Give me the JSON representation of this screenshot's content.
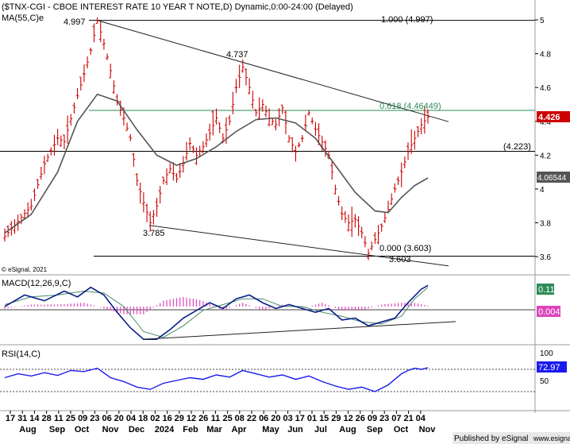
{
  "header": {
    "title": "($TNX-CGI - CBOE INTEREST RATE 10 YEAR T NOTE,D) Dynamic,0:00-24:00 (Delayed)",
    "ma_label": "MA(55,C)e",
    "copyright": "© eSignal, 2021"
  },
  "colors": {
    "price_bar": "#cc0000",
    "ma_line": "#555555",
    "trendline": "#222222",
    "fib_line": "#2e8b57",
    "macd_line": "#0a1e8a",
    "signal_line": "#4a8a6a",
    "histogram": "#dd44bb",
    "rsi_line": "#1a1aee",
    "last_price_bg": "#cc0000",
    "ma_value_bg": "#555555",
    "macd_value_bg": "#2e8b57",
    "hist_value_bg": "#dd44bb",
    "rsi_value_bg": "#1a1aee"
  },
  "panes": {
    "macd_label": "MACD(12,26,9,C)",
    "rsi_label": "RSI(14,C)"
  },
  "price_labels": {
    "last_price": "4.426",
    "ma_value": "4.06544",
    "macd_value": "0.11",
    "histogram_value": "0.004",
    "rsi_value": "72.97"
  },
  "footer": {
    "published_by": "Published by eSignal",
    "website": "www.esignal.com"
  },
  "chart_data": {
    "type": "candlestick",
    "y_axis": {
      "ticks": [
        3.6,
        3.8,
        4,
        4.2,
        4.4,
        4.6,
        4.8,
        5
      ],
      "ylim": [
        3.53,
        5.08
      ]
    },
    "annotations": {
      "swing_high": "4.997",
      "lower_high": "4.737",
      "swing_low": "3.785",
      "recent_low": "3.603",
      "fib_100": "1.000 (4.997)",
      "fib_618": "0.618 (4.46449)",
      "fib_000": "0.000 (3.603)",
      "support_level": "(4.223)",
      "low_label_2": "3.603"
    },
    "levels": {
      "fib_100": 4.997,
      "fib_618": 4.46449,
      "fib_000": 3.603,
      "support": 4.223
    },
    "x_axis": {
      "day_labels": [
        "17",
        "31",
        "14",
        "28",
        "11",
        "25",
        "09",
        "23",
        "06",
        "20",
        "04",
        "18",
        "02",
        "16",
        "29",
        "12",
        "26",
        "11",
        "25",
        "08",
        "22",
        "06",
        "20",
        "03",
        "17",
        "01",
        "15",
        "29",
        "12",
        "26",
        "09",
        "23",
        "07",
        "21",
        "04"
      ],
      "month_labels": [
        "Aug",
        "Sep",
        "Oct",
        "Nov",
        "Dec",
        "2024",
        "Feb",
        "Mar",
        "Apr",
        "May",
        "Jun",
        "Jul",
        "Aug",
        "Sep",
        "Oct",
        "Nov"
      ]
    },
    "price_path": [
      [
        0,
        3.72
      ],
      [
        4,
        3.9
      ],
      [
        6,
        4.15
      ],
      [
        8,
        4.3
      ],
      [
        9,
        4.28
      ],
      [
        11,
        4.55
      ],
      [
        12,
        4.68
      ],
      [
        13,
        4.82
      ],
      [
        14,
        4.997
      ],
      [
        15,
        4.86
      ],
      [
        16,
        4.7
      ],
      [
        17,
        4.52
      ],
      [
        18,
        4.42
      ],
      [
        19,
        4.3
      ],
      [
        20,
        4.05
      ],
      [
        21,
        3.92
      ],
      [
        22,
        3.8
      ],
      [
        23,
        3.9
      ],
      [
        24,
        4.05
      ],
      [
        25,
        4.12
      ],
      [
        26,
        4.06
      ],
      [
        27,
        4.15
      ],
      [
        28,
        4.27
      ],
      [
        29,
        4.2
      ],
      [
        30,
        4.25
      ],
      [
        31,
        4.33
      ],
      [
        32,
        4.42
      ],
      [
        33,
        4.3
      ],
      [
        34,
        4.4
      ],
      [
        35,
        4.6
      ],
      [
        36,
        4.72
      ],
      [
        37,
        4.6
      ],
      [
        38,
        4.45
      ],
      [
        39,
        4.5
      ],
      [
        40,
        4.42
      ],
      [
        41,
        4.38
      ],
      [
        42,
        4.48
      ],
      [
        43,
        4.3
      ],
      [
        44,
        4.22
      ],
      [
        45,
        4.3
      ],
      [
        46,
        4.45
      ],
      [
        47,
        4.35
      ],
      [
        48,
        4.28
      ],
      [
        49,
        4.2
      ],
      [
        50,
        4.0
      ],
      [
        51,
        3.85
      ],
      [
        52,
        3.8
      ],
      [
        53,
        3.82
      ],
      [
        54,
        3.74
      ],
      [
        55,
        3.62
      ],
      [
        56,
        3.7
      ],
      [
        57,
        3.78
      ],
      [
        58,
        3.88
      ],
      [
        59,
        4.0
      ],
      [
        60,
        4.1
      ],
      [
        61,
        4.22
      ],
      [
        62,
        4.3
      ],
      [
        63,
        4.38
      ],
      [
        64,
        4.426
      ]
    ],
    "ma_path": [
      [
        0,
        3.74
      ],
      [
        4,
        3.85
      ],
      [
        8,
        4.1
      ],
      [
        11,
        4.4
      ],
      [
        14,
        4.56
      ],
      [
        17,
        4.52
      ],
      [
        20,
        4.35
      ],
      [
        23,
        4.2
      ],
      [
        26,
        4.14
      ],
      [
        29,
        4.18
      ],
      [
        32,
        4.25
      ],
      [
        35,
        4.34
      ],
      [
        38,
        4.41
      ],
      [
        41,
        4.42
      ],
      [
        44,
        4.39
      ],
      [
        47,
        4.3
      ],
      [
        50,
        4.14
      ],
      [
        53,
        3.98
      ],
      [
        56,
        3.87
      ],
      [
        58,
        3.86
      ],
      [
        60,
        3.95
      ],
      [
        62,
        4.02
      ],
      [
        64,
        4.06544
      ]
    ],
    "macd": {
      "ylim": [
        -0.19,
        0.14
      ],
      "macd_path": [
        [
          0,
          0.0
        ],
        [
          3,
          0.06
        ],
        [
          6,
          0.03
        ],
        [
          9,
          0.08
        ],
        [
          11,
          0.05
        ],
        [
          13,
          0.1
        ],
        [
          15,
          0.06
        ],
        [
          17,
          -0.03
        ],
        [
          19,
          -0.11
        ],
        [
          21,
          -0.17
        ],
        [
          23,
          -0.17
        ],
        [
          25,
          -0.12
        ],
        [
          27,
          -0.06
        ],
        [
          29,
          -0.02
        ],
        [
          31,
          0.02
        ],
        [
          33,
          -0.01
        ],
        [
          35,
          0.04
        ],
        [
          37,
          0.06
        ],
        [
          39,
          0.02
        ],
        [
          41,
          -0.01
        ],
        [
          43,
          0.01
        ],
        [
          45,
          -0.01
        ],
        [
          47,
          -0.03
        ],
        [
          49,
          -0.01
        ],
        [
          51,
          -0.07
        ],
        [
          53,
          -0.06
        ],
        [
          55,
          -0.1
        ],
        [
          57,
          -0.08
        ],
        [
          59,
          -0.06
        ],
        [
          61,
          0.02
        ],
        [
          63,
          0.09
        ],
        [
          64,
          0.11
        ]
      ],
      "signal_path": [
        [
          0,
          0.01
        ],
        [
          4,
          0.05
        ],
        [
          8,
          0.06
        ],
        [
          12,
          0.08
        ],
        [
          15,
          0.07
        ],
        [
          18,
          0.0
        ],
        [
          21,
          -0.13
        ],
        [
          24,
          -0.16
        ],
        [
          27,
          -0.1
        ],
        [
          30,
          -0.02
        ],
        [
          33,
          0.01
        ],
        [
          36,
          0.04
        ],
        [
          39,
          0.04
        ],
        [
          42,
          0.0
        ],
        [
          45,
          0.0
        ],
        [
          48,
          -0.03
        ],
        [
          51,
          -0.05
        ],
        [
          54,
          -0.08
        ],
        [
          57,
          -0.09
        ],
        [
          60,
          -0.05
        ],
        [
          62,
          0.04
        ],
        [
          64,
          0.1
        ]
      ],
      "histogram_path": [
        [
          0,
          -0.01
        ],
        [
          4,
          0.01
        ],
        [
          8,
          0.01
        ],
        [
          12,
          0.02
        ],
        [
          15,
          -0.01
        ],
        [
          18,
          -0.04
        ],
        [
          21,
          -0.04
        ],
        [
          24,
          0.03
        ],
        [
          27,
          0.05
        ],
        [
          30,
          0.03
        ],
        [
          33,
          -0.02
        ],
        [
          36,
          0.02
        ],
        [
          39,
          -0.02
        ],
        [
          42,
          0.01
        ],
        [
          45,
          -0.01
        ],
        [
          48,
          0.02
        ],
        [
          51,
          -0.02
        ],
        [
          54,
          -0.02
        ],
        [
          57,
          0.01
        ],
        [
          60,
          0.02
        ],
        [
          62,
          0.02
        ],
        [
          64,
          0.004
        ]
      ],
      "trendline": [
        [
          21,
          -0.17
        ],
        [
          69,
          -0.078
        ]
      ]
    },
    "rsi": {
      "ylim": [
        0,
        100
      ],
      "ticks": [
        50,
        100
      ],
      "path": [
        [
          0,
          55
        ],
        [
          2,
          62
        ],
        [
          4,
          58
        ],
        [
          6,
          64
        ],
        [
          8,
          59
        ],
        [
          10,
          68
        ],
        [
          12,
          66
        ],
        [
          14,
          72
        ],
        [
          16,
          55
        ],
        [
          18,
          48
        ],
        [
          20,
          38
        ],
        [
          22,
          34
        ],
        [
          24,
          45
        ],
        [
          26,
          50
        ],
        [
          28,
          55
        ],
        [
          30,
          52
        ],
        [
          32,
          60
        ],
        [
          34,
          56
        ],
        [
          36,
          68
        ],
        [
          38,
          62
        ],
        [
          40,
          56
        ],
        [
          42,
          60
        ],
        [
          44,
          52
        ],
        [
          46,
          58
        ],
        [
          48,
          48
        ],
        [
          50,
          40
        ],
        [
          52,
          34
        ],
        [
          54,
          38
        ],
        [
          56,
          30
        ],
        [
          58,
          42
        ],
        [
          59,
          52
        ],
        [
          60,
          62
        ],
        [
          61,
          68
        ],
        [
          62,
          72
        ],
        [
          63,
          70
        ],
        [
          64,
          72.97
        ]
      ]
    }
  }
}
